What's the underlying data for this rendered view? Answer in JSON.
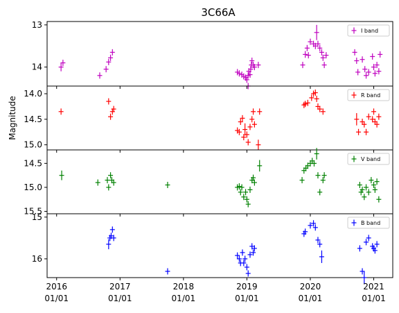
{
  "chart_data": {
    "type": "scatter",
    "title": "3C66A",
    "ylabel": "Magnitude",
    "x_axis": {
      "unit": "year",
      "range": [
        2015.85,
        2021.3
      ],
      "ticks": [
        {
          "value": 2016,
          "line1": "2016",
          "line2": "01/01"
        },
        {
          "value": 2017,
          "line1": "2017",
          "line2": "01/01"
        },
        {
          "value": 2018,
          "line1": "2018",
          "line2": "01/01"
        },
        {
          "value": 2019,
          "line1": "2019",
          "line2": "01/01"
        },
        {
          "value": 2020,
          "line1": "2020",
          "line2": "01/01"
        },
        {
          "value": 2021,
          "line1": "2021",
          "line2": "01/01"
        }
      ]
    },
    "panels": [
      {
        "band": "I band",
        "color": "#bf00bf",
        "ylim": [
          14.45,
          12.92
        ],
        "yticks": [
          {
            "v": 13,
            "label": "13"
          },
          {
            "v": 14,
            "label": "14"
          }
        ],
        "points": [
          [
            2016.07,
            14.0
          ],
          [
            2016.1,
            13.9
          ],
          [
            2016.68,
            14.2
          ],
          [
            2016.78,
            14.05
          ],
          [
            2016.82,
            13.88
          ],
          [
            2016.85,
            13.78
          ],
          [
            2016.88,
            13.65
          ],
          [
            2018.85,
            14.12
          ],
          [
            2018.88,
            14.15
          ],
          [
            2018.92,
            14.18
          ],
          [
            2018.95,
            14.22
          ],
          [
            2018.98,
            14.25
          ],
          [
            2019.0,
            14.3
          ],
          [
            2019.02,
            14.2
          ],
          [
            2019.03,
            14.1
          ],
          [
            2019.05,
            14.18
          ],
          [
            2019.06,
            14.05
          ],
          [
            2019.07,
            13.95
          ],
          [
            2019.08,
            13.85
          ],
          [
            2019.1,
            13.95
          ],
          [
            2019.12,
            14.0
          ],
          [
            2019.18,
            13.95
          ],
          [
            2019.02,
            14.45
          ],
          [
            2019.88,
            13.95
          ],
          [
            2019.92,
            13.7
          ],
          [
            2019.95,
            13.55
          ],
          [
            2019.97,
            13.72
          ],
          [
            2020.0,
            13.4
          ],
          [
            2020.05,
            13.45
          ],
          [
            2020.08,
            13.5
          ],
          [
            2020.1,
            13.18
          ],
          [
            2020.12,
            13.45
          ],
          [
            2020.15,
            13.55
          ],
          [
            2020.18,
            13.65
          ],
          [
            2020.2,
            13.78
          ],
          [
            2020.22,
            13.95
          ],
          [
            2020.25,
            13.72
          ],
          [
            2020.7,
            13.65
          ],
          [
            2020.73,
            13.85
          ],
          [
            2020.75,
            14.12
          ],
          [
            2020.82,
            13.82
          ],
          [
            2020.86,
            14.05
          ],
          [
            2020.88,
            14.2
          ],
          [
            2020.92,
            14.12
          ],
          [
            2020.98,
            13.75
          ],
          [
            2021.0,
            14.0
          ],
          [
            2021.02,
            14.15
          ],
          [
            2021.05,
            13.95
          ],
          [
            2021.08,
            14.1
          ],
          [
            2021.1,
            13.7
          ]
        ],
        "errors": [
          [
            2020.1,
            0.18
          ],
          [
            2019.92,
            0.08
          ],
          [
            2016.07,
            0.1
          ]
        ]
      },
      {
        "band": "R band",
        "color": "#ff0000",
        "ylim": [
          15.1,
          13.85
        ],
        "yticks": [
          {
            "v": 14.0,
            "label": "14.0"
          },
          {
            "v": 14.5,
            "label": "14.5"
          },
          {
            "v": 15.0,
            "label": "15.0"
          }
        ],
        "points": [
          [
            2016.07,
            14.35
          ],
          [
            2016.82,
            14.15
          ],
          [
            2016.85,
            14.45
          ],
          [
            2016.88,
            14.35
          ],
          [
            2016.9,
            14.3
          ],
          [
            2018.85,
            14.72
          ],
          [
            2018.88,
            14.75
          ],
          [
            2018.9,
            14.55
          ],
          [
            2018.93,
            14.48
          ],
          [
            2018.95,
            14.85
          ],
          [
            2018.97,
            14.7
          ],
          [
            2019.0,
            14.8
          ],
          [
            2019.02,
            14.95
          ],
          [
            2019.05,
            14.65
          ],
          [
            2019.08,
            14.5
          ],
          [
            2019.1,
            14.35
          ],
          [
            2019.12,
            14.6
          ],
          [
            2019.18,
            15.0
          ],
          [
            2019.2,
            14.35
          ],
          [
            2019.9,
            14.22
          ],
          [
            2019.92,
            14.2
          ],
          [
            2019.96,
            14.18
          ],
          [
            2020.02,
            14.08
          ],
          [
            2020.05,
            14.0
          ],
          [
            2020.08,
            13.98
          ],
          [
            2020.1,
            14.1
          ],
          [
            2020.12,
            14.25
          ],
          [
            2020.15,
            14.3
          ],
          [
            2020.2,
            14.35
          ],
          [
            2020.73,
            14.5
          ],
          [
            2020.76,
            14.75
          ],
          [
            2020.82,
            14.55
          ],
          [
            2020.85,
            14.6
          ],
          [
            2020.88,
            14.75
          ],
          [
            2020.92,
            14.45
          ],
          [
            2020.98,
            14.5
          ],
          [
            2021.0,
            14.35
          ],
          [
            2021.02,
            14.55
          ],
          [
            2021.05,
            14.6
          ],
          [
            2021.08,
            14.45
          ]
        ],
        "errors": [
          [
            2018.97,
            0.12
          ],
          [
            2020.73,
            0.12
          ],
          [
            2019.18,
            0.1
          ]
        ]
      },
      {
        "band": "V band",
        "color": "#008000",
        "ylim": [
          15.55,
          14.22
        ],
        "yticks": [
          {
            "v": 14.5,
            "label": "14.5"
          },
          {
            "v": 15.0,
            "label": "15.0"
          },
          {
            "v": 15.5,
            "label": "15.5"
          }
        ],
        "points": [
          [
            2016.08,
            14.75
          ],
          [
            2016.65,
            14.9
          ],
          [
            2016.8,
            14.85
          ],
          [
            2016.82,
            15.0
          ],
          [
            2016.85,
            14.75
          ],
          [
            2016.87,
            14.85
          ],
          [
            2016.9,
            14.9
          ],
          [
            2017.75,
            14.95
          ],
          [
            2018.85,
            15.0
          ],
          [
            2018.88,
            14.98
          ],
          [
            2018.9,
            15.1
          ],
          [
            2018.92,
            15.0
          ],
          [
            2018.95,
            15.2
          ],
          [
            2018.98,
            15.1
          ],
          [
            2019.0,
            15.25
          ],
          [
            2019.02,
            15.35
          ],
          [
            2019.05,
            15.05
          ],
          [
            2019.08,
            14.85
          ],
          [
            2019.1,
            14.8
          ],
          [
            2019.12,
            14.9
          ],
          [
            2019.2,
            14.55
          ],
          [
            2019.87,
            14.85
          ],
          [
            2019.9,
            14.65
          ],
          [
            2019.93,
            14.6
          ],
          [
            2019.96,
            14.55
          ],
          [
            2020.0,
            14.5
          ],
          [
            2020.03,
            14.45
          ],
          [
            2020.06,
            14.5
          ],
          [
            2020.1,
            14.3
          ],
          [
            2020.12,
            14.75
          ],
          [
            2020.15,
            15.1
          ],
          [
            2020.2,
            14.85
          ],
          [
            2020.22,
            14.75
          ],
          [
            2020.78,
            14.95
          ],
          [
            2020.8,
            15.1
          ],
          [
            2020.82,
            15.05
          ],
          [
            2020.85,
            15.2
          ],
          [
            2020.88,
            15.0
          ],
          [
            2020.92,
            15.1
          ],
          [
            2020.96,
            14.85
          ],
          [
            2021.0,
            14.95
          ],
          [
            2021.02,
            15.05
          ],
          [
            2021.05,
            14.88
          ],
          [
            2021.08,
            15.25
          ]
        ],
        "errors": [
          [
            2020.1,
            0.12
          ],
          [
            2019.2,
            0.12
          ],
          [
            2016.08,
            0.1
          ]
        ]
      },
      {
        "band": "B band",
        "color": "#0000ff",
        "ylim": [
          16.45,
          14.92
        ],
        "yticks": [
          {
            "v": 15,
            "label": "15"
          },
          {
            "v": 16,
            "label": "16"
          }
        ],
        "points": [
          [
            2016.82,
            15.65
          ],
          [
            2016.84,
            15.5
          ],
          [
            2016.86,
            15.45
          ],
          [
            2016.88,
            15.3
          ],
          [
            2016.9,
            15.5
          ],
          [
            2017.75,
            16.3
          ],
          [
            2018.85,
            15.92
          ],
          [
            2018.88,
            16.0
          ],
          [
            2018.9,
            16.1
          ],
          [
            2018.93,
            15.85
          ],
          [
            2018.95,
            16.1
          ],
          [
            2018.97,
            16.0
          ],
          [
            2019.0,
            16.2
          ],
          [
            2019.02,
            16.35
          ],
          [
            2019.05,
            15.9
          ],
          [
            2019.08,
            15.7
          ],
          [
            2019.1,
            15.85
          ],
          [
            2019.12,
            15.75
          ],
          [
            2019.9,
            15.4
          ],
          [
            2019.92,
            15.35
          ],
          [
            2020.0,
            15.2
          ],
          [
            2020.05,
            15.15
          ],
          [
            2020.08,
            15.25
          ],
          [
            2020.12,
            15.55
          ],
          [
            2020.15,
            15.65
          ],
          [
            2020.18,
            15.95
          ],
          [
            2020.78,
            15.75
          ],
          [
            2020.82,
            16.3
          ],
          [
            2020.85,
            16.45
          ],
          [
            2020.88,
            15.6
          ],
          [
            2020.92,
            15.5
          ],
          [
            2020.98,
            15.7
          ],
          [
            2021.0,
            15.75
          ],
          [
            2021.02,
            15.8
          ],
          [
            2021.05,
            15.65
          ]
        ],
        "errors": [
          [
            2020.85,
            0.15
          ],
          [
            2020.18,
            0.15
          ],
          [
            2016.82,
            0.12
          ]
        ]
      }
    ]
  }
}
